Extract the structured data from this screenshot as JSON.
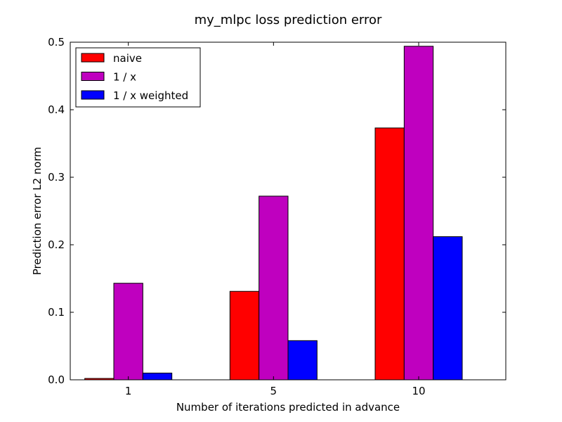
{
  "chart_data": {
    "type": "bar",
    "title": "my_mlpc loss prediction error",
    "xlabel": "Number of iterations predicted in advance",
    "ylabel": "Prediction error L2 norm",
    "categories": [
      "1",
      "5",
      "10"
    ],
    "ylim": [
      0,
      0.5
    ],
    "yticks": [
      "0.0",
      "0.1",
      "0.2",
      "0.3",
      "0.4",
      "0.5"
    ],
    "grid": false,
    "legend_position": "top-left",
    "series": [
      {
        "name": "naive",
        "color": "#ff0000",
        "values": [
          0.002,
          0.131,
          0.373
        ]
      },
      {
        "name": "1 / x",
        "color": "#bf00bf",
        "values": [
          0.143,
          0.272,
          0.494
        ]
      },
      {
        "name": "1 / x weighted",
        "color": "#0000ff",
        "values": [
          0.01,
          0.058,
          0.212
        ]
      }
    ]
  }
}
